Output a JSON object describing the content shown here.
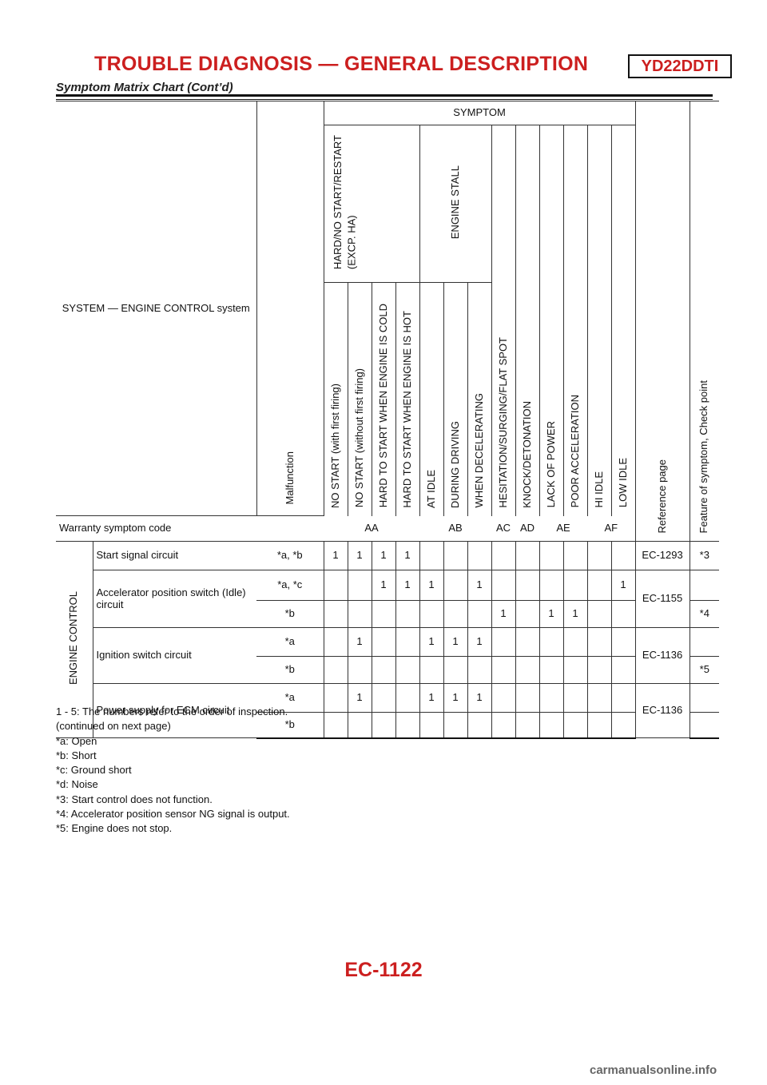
{
  "header": {
    "title": "TROUBLE DIAGNOSIS — GENERAL DESCRIPTION",
    "model": "YD22DDTI",
    "subtitle": "Symptom Matrix Chart (Cont’d)"
  },
  "table": {
    "system_label": "SYSTEM — ENGINE CONTROL system",
    "malfunction_label": "Malfunction",
    "symptom_label": "SYMPTOM",
    "group_hard": "HARD/NO START/RESTART\n(EXCP. HA)",
    "group_stall": "ENGINE STALL",
    "symptoms": [
      "NO START (with first firing)",
      "NO START (without first firing)",
      "HARD TO START WHEN ENGINE IS COLD",
      "HARD TO START WHEN ENGINE IS HOT",
      "AT IDLE",
      "DURING DRIVING",
      "WHEN DECELERATING",
      "HESITATION/SURGING/FLAT SPOT",
      "KNOCK/DETONATION",
      "LACK OF POWER",
      "POOR ACCELERATION",
      "HI IDLE",
      "LOW IDLE"
    ],
    "ref_label": "Reference page",
    "feature_label": "Feature of symptom, Check point",
    "warranty_label": "Warranty symptom code",
    "codes": [
      "AA",
      "AB",
      "AC",
      "AD",
      "AE",
      "AF"
    ],
    "group_name": "ENGINE CONTROL",
    "rows": [
      {
        "system": "Start signal circuit",
        "mal": "*a, *b",
        "c": [
          "1",
          "1",
          "1",
          "1",
          "",
          "",
          "",
          "",
          "",
          "",
          "",
          "",
          ""
        ],
        "ref": "EC-1293",
        "feat": "*3"
      },
      {
        "system": "Accelerator position switch (Idle) circuit",
        "mal": "*a, *c",
        "c": [
          "",
          "",
          "1",
          "1",
          "1",
          "",
          "1",
          "",
          "",
          "",
          "",
          "",
          "1"
        ],
        "ref": "EC-1155",
        "feat": ""
      },
      {
        "mal": "*b",
        "c": [
          "",
          "",
          "",
          "",
          "",
          "",
          "",
          "1",
          "",
          "1",
          "1",
          "",
          ""
        ],
        "feat": "*4"
      },
      {
        "system": "Ignition switch circuit",
        "mal": "*a",
        "c": [
          "",
          "1",
          "",
          "",
          "1",
          "1",
          "1",
          "",
          "",
          "",
          "",
          "",
          ""
        ],
        "ref": "EC-1136",
        "feat": ""
      },
      {
        "mal": "*b",
        "c": [
          "",
          "",
          "",
          "",
          "",
          "",
          "",
          "",
          "",
          "",
          "",
          "",
          ""
        ],
        "feat": "*5"
      },
      {
        "system": "Power supply for ECM circuit",
        "mal": "*a",
        "c": [
          "",
          "1",
          "",
          "",
          "1",
          "1",
          "1",
          "",
          "",
          "",
          "",
          "",
          ""
        ],
        "ref": "EC-1136",
        "feat": ""
      },
      {
        "mal": "*b",
        "c": [
          "",
          "",
          "",
          "",
          "",
          "",
          "",
          "",
          "",
          "",
          "",
          "",
          ""
        ],
        "feat": ""
      }
    ]
  },
  "notes": [
    "1 - 5: The numbers refer to the order of inspection.",
    "(continued on next page)",
    "*a: Open",
    "*b: Short",
    "*c: Ground short",
    "*d: Noise",
    "*3: Start control does not function.",
    "*4: Accelerator position sensor NG signal is output.",
    "*5: Engine does not stop."
  ],
  "page_number": "EC-1122",
  "watermark": "carmanualsonline.info",
  "colors": {
    "accent": "#cc1f1f"
  }
}
